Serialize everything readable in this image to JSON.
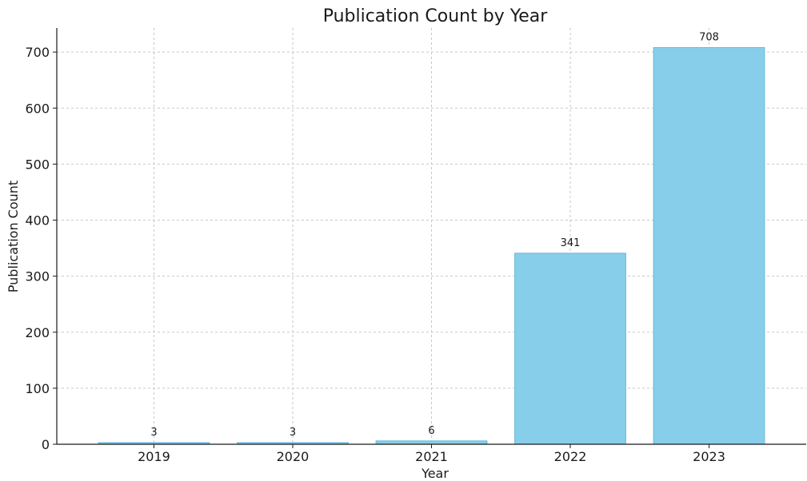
{
  "chart_data": {
    "type": "bar",
    "title": "Publication Count by Year",
    "xlabel": "Year",
    "ylabel": "Publication Count",
    "categories": [
      "2019",
      "2020",
      "2021",
      "2022",
      "2023"
    ],
    "values": [
      3,
      3,
      6,
      341,
      708
    ],
    "data_labels": [
      "3",
      "3",
      "6",
      "341",
      "708"
    ],
    "yticks": [
      0,
      100,
      200,
      300,
      400,
      500,
      600,
      700
    ],
    "ylim": [
      0,
      743
    ],
    "grid": true,
    "bar_color": "#87CEEB",
    "bar_edge_color": "#6BB8DC"
  }
}
